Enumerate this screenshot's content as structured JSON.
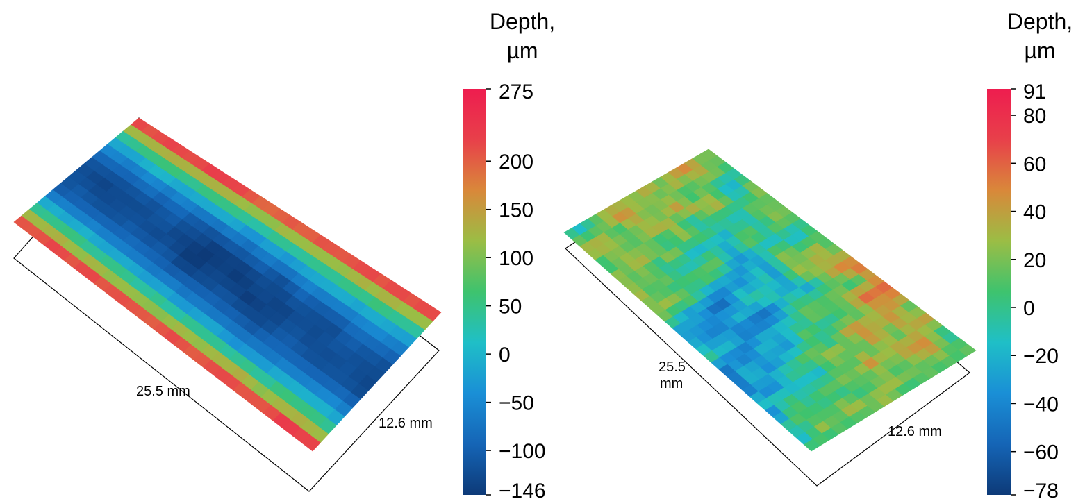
{
  "chart_data": [
    {
      "type": "heatmap",
      "surface_shape": "channel",
      "colorbar": {
        "title_line1": "Depth,",
        "title_line2": "µm",
        "min": -146,
        "max": 275,
        "ticks": [
          275,
          200,
          150,
          100,
          50,
          0,
          -50,
          -100,
          -146
        ],
        "tick_labels": [
          "275",
          "200",
          "150",
          "100",
          "50",
          "0",
          "−50",
          "−100",
          "−146"
        ]
      },
      "dimensions": {
        "length_label": "25.5 mm",
        "width_label": "12.6 mm"
      },
      "colormap": [
        "#0d3a78",
        "#1565b6",
        "#1a8fd6",
        "#1fbfc7",
        "#3ec36e",
        "#9bbd45",
        "#d9883a",
        "#e8404a",
        "#ee1d4f"
      ]
    },
    {
      "type": "heatmap",
      "surface_shape": "flat",
      "colorbar": {
        "title_line1": "Depth,",
        "title_line2": "µm",
        "min": -78,
        "max": 91,
        "ticks": [
          91,
          80,
          60,
          40,
          20,
          0,
          -20,
          -40,
          -60,
          -78
        ],
        "tick_labels": [
          "91",
          "80",
          "60",
          "40",
          "20",
          "0",
          "−20",
          "−40",
          "−60",
          "−78"
        ]
      },
      "dimensions": {
        "length_label_line1": "25.5",
        "length_label_line2": "mm",
        "width_label": "12.6 mm"
      },
      "colormap": [
        "#0d3a78",
        "#1565b6",
        "#1a8fd6",
        "#1fbfc7",
        "#3ec36e",
        "#9bbd45",
        "#d9883a",
        "#e8404a",
        "#ee1d4f"
      ]
    }
  ]
}
